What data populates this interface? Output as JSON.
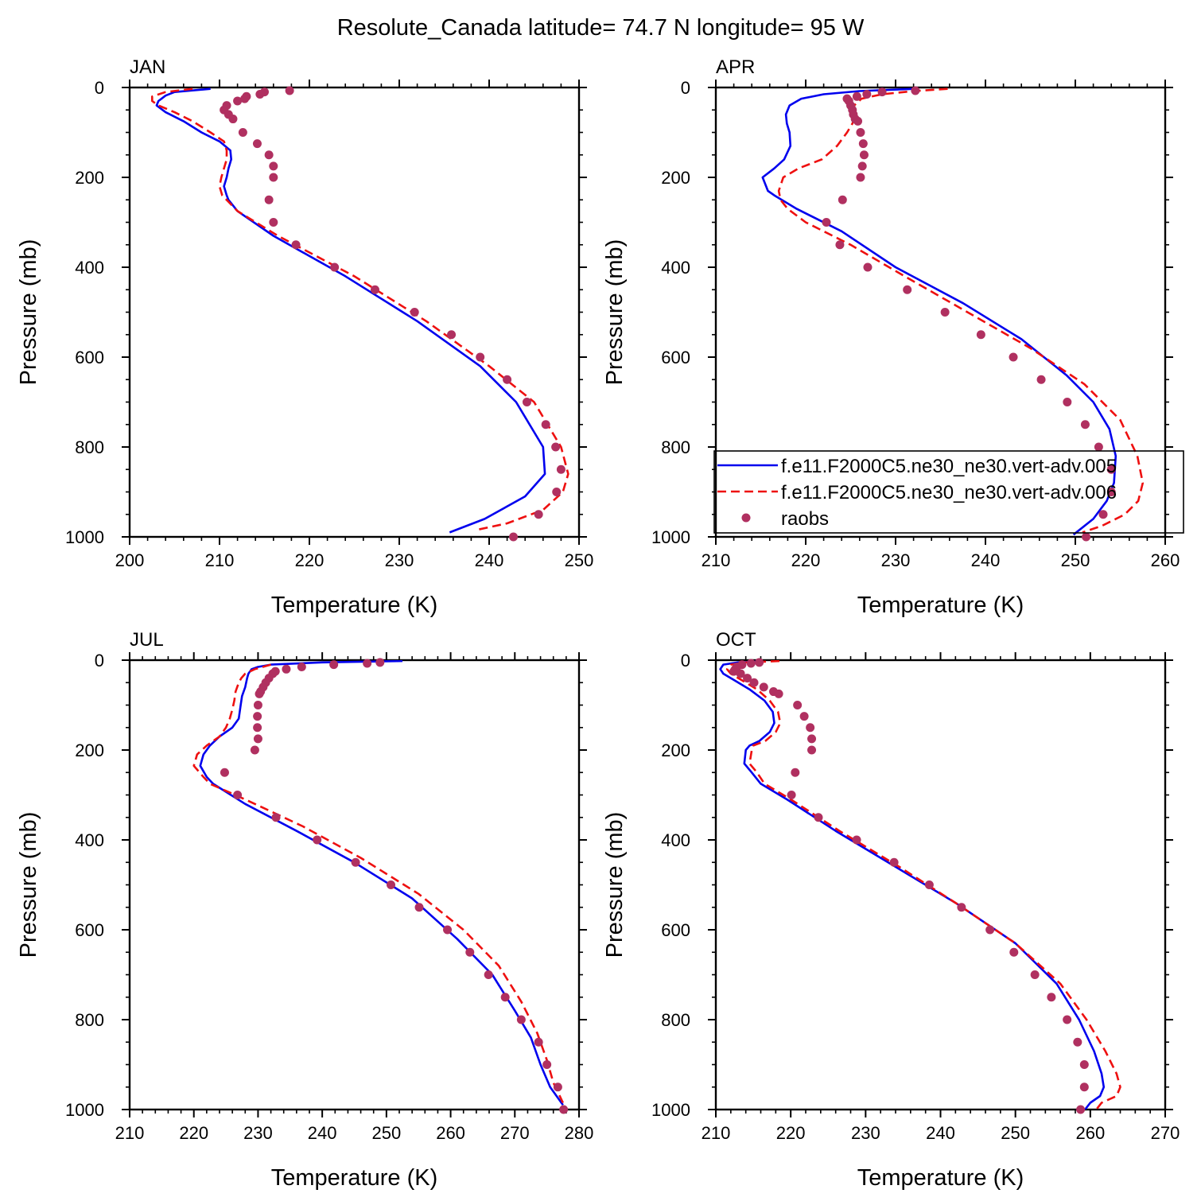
{
  "title": "Resolute_Canada  latitude= 74.7 N longitude= 95 W",
  "colors": {
    "model005": "#0000ee",
    "model006": "#ee1010",
    "raobs": "#b03060"
  },
  "legend": {
    "entries": [
      {
        "label": "f.e11.F2000C5.ne30_ne30.vert-adv.005",
        "style": "solid"
      },
      {
        "label": "f.e11.F2000C5.ne30_ne30.vert-adv.006",
        "style": "dashed"
      },
      {
        "label": "raobs",
        "style": "marker"
      }
    ]
  },
  "chart_data": [
    {
      "type": "line",
      "panel": "JAN",
      "xlabel": "Temperature (K)",
      "ylabel": "Pressure (mb)",
      "xlim": [
        200,
        250
      ],
      "ylim": [
        1000,
        0
      ],
      "xticks": [
        200,
        210,
        220,
        230,
        240,
        250
      ],
      "yticks": [
        0,
        200,
        400,
        600,
        800,
        1000
      ],
      "series": [
        {
          "name": "f.e11.F2000C5.ne30_ne30.vert-adv.005",
          "t": [
            209,
            205,
            204,
            203.2,
            203,
            204,
            206,
            208,
            210,
            211.2,
            211.3,
            211,
            210.8,
            210.5,
            210.8,
            211,
            212,
            216,
            224,
            232,
            239,
            243,
            246,
            246.2,
            244,
            239.5,
            235.6
          ],
          "p": [
            3,
            10,
            18,
            30,
            40,
            55,
            75,
            100,
            120,
            140,
            160,
            180,
            200,
            220,
            240,
            250,
            275,
            330,
            420,
            520,
            620,
            700,
            800,
            860,
            910,
            960,
            990
          ]
        },
        {
          "name": "f.e11.F2000C5.ne30_ne30.vert-adv.006",
          "t": [
            207,
            204,
            202.5,
            202.5,
            203.2,
            205,
            207,
            209,
            210.5,
            210.8,
            210.8,
            210.5,
            210.2,
            210,
            210.3,
            210.8,
            212,
            216.5,
            225,
            233,
            240,
            245,
            248,
            248.8,
            248.2,
            246,
            242,
            238.5
          ],
          "p": [
            3,
            10,
            20,
            30,
            40,
            55,
            75,
            100,
            120,
            140,
            160,
            180,
            200,
            220,
            240,
            250,
            275,
            330,
            420,
            520,
            620,
            700,
            800,
            860,
            900,
            940,
            970,
            985
          ]
        },
        {
          "name": "raobs",
          "t": [
            217.8,
            215,
            214.5,
            213,
            212.8,
            212,
            210.8,
            210.5,
            211,
            211.5,
            212.6,
            214.2,
            215.5,
            216,
            216,
            215.5,
            216,
            218.5,
            222.8,
            227.3,
            231.7,
            235.8,
            239,
            242,
            244.2,
            246.3,
            247.4,
            248,
            247.5,
            245.5,
            242.7
          ],
          "p": [
            7,
            10,
            15,
            20,
            25,
            30,
            40,
            50,
            60,
            70,
            100,
            125,
            150,
            175,
            200,
            250,
            300,
            350,
            400,
            450,
            500,
            550,
            600,
            650,
            700,
            750,
            800,
            850,
            900,
            950,
            1000
          ]
        }
      ]
    },
    {
      "type": "line",
      "panel": "APR",
      "xlabel": "Temperature (K)",
      "ylabel": "Pressure (mb)",
      "xlim": [
        210,
        260
      ],
      "ylim": [
        1000,
        0
      ],
      "xticks": [
        210,
        220,
        230,
        240,
        250,
        260
      ],
      "yticks": [
        0,
        200,
        400,
        600,
        800,
        1000
      ],
      "series": [
        {
          "name": "f.e11.F2000C5.ne30_ne30.vert-adv.005",
          "t": [
            232,
            226,
            222,
            219.5,
            218.2,
            217.8,
            217.9,
            218.2,
            218.3,
            217.6,
            216.5,
            215.2,
            215.8,
            216.5,
            219,
            224,
            230,
            237.5,
            244,
            249,
            252,
            253.8,
            254.5,
            254.3,
            253.5,
            252,
            249.8
          ],
          "p": [
            3,
            8,
            15,
            25,
            40,
            60,
            80,
            100,
            130,
            160,
            180,
            200,
            230,
            240,
            270,
            320,
            400,
            480,
            560,
            640,
            700,
            760,
            820,
            880,
            920,
            960,
            995
          ]
        },
        {
          "name": "f.e11.F2000C5.ne30_ne30.vert-adv.006",
          "t": [
            235.8,
            232,
            228.5,
            226.2,
            225.4,
            225.5,
            225.2,
            224.6,
            223.5,
            221.8,
            219.2,
            217.5,
            217,
            217.2,
            218,
            220,
            225,
            231,
            238,
            245,
            251,
            255,
            256.9,
            257.5,
            257,
            255.5,
            253,
            250.8
          ],
          "p": [
            3,
            8,
            15,
            25,
            40,
            60,
            80,
            100,
            130,
            160,
            180,
            200,
            230,
            250,
            270,
            300,
            350,
            420,
            500,
            580,
            660,
            740,
            820,
            880,
            920,
            950,
            975,
            990
          ]
        },
        {
          "name": "raobs",
          "t": [
            232.2,
            228.5,
            226.8,
            225.7,
            224.6,
            224.8,
            225,
            225.2,
            225.3,
            225.5,
            225.8,
            226.1,
            226.4,
            226.5,
            226.3,
            226.1,
            224.1,
            222.3,
            223.8,
            226.9,
            231.3,
            235.5,
            239.5,
            243.1,
            246.2,
            249.1,
            251.1,
            252.6,
            254,
            254,
            253.1,
            251.2
          ],
          "p": [
            7,
            10,
            15,
            20,
            25,
            30,
            40,
            50,
            60,
            70,
            75,
            100,
            125,
            150,
            175,
            200,
            250,
            300,
            350,
            400,
            450,
            500,
            550,
            600,
            650,
            700,
            750,
            800,
            850,
            900,
            950,
            1000
          ]
        }
      ]
    },
    {
      "type": "line",
      "panel": "JUL",
      "xlabel": "Temperature (K)",
      "ylabel": "Pressure (mb)",
      "xlim": [
        210,
        280
      ],
      "ylim": [
        1000,
        0
      ],
      "xticks": [
        210,
        220,
        230,
        240,
        250,
        260,
        270,
        280
      ],
      "yticks": [
        0,
        200,
        400,
        600,
        800,
        1000
      ],
      "series": [
        {
          "name": "f.e11.F2000C5.ne30_ne30.vert-adv.005",
          "t": [
            252.5,
            240,
            232,
            230,
            229,
            228.5,
            228.3,
            228,
            227.5,
            227.3,
            227,
            226,
            224,
            222.5,
            221.5,
            221,
            222,
            223,
            228,
            236,
            245,
            254,
            261,
            266.5,
            270,
            272.5,
            274,
            275.5,
            277.5
          ],
          "p": [
            2,
            5,
            10,
            15,
            20,
            30,
            40,
            60,
            80,
            100,
            130,
            150,
            170,
            190,
            210,
            235,
            260,
            275,
            320,
            380,
            450,
            530,
            620,
            700,
            780,
            840,
            900,
            950,
            990
          ]
        },
        {
          "name": "f.e11.F2000C5.ne30_ne30.vert-adv.006",
          "t": [
            232,
            229.5,
            228,
            227.4,
            227,
            226.5,
            226.3,
            226,
            225.6,
            225,
            224,
            222,
            220.5,
            220,
            221.5,
            222.5,
            228,
            237,
            246,
            255,
            262,
            267.5,
            271,
            273.5,
            275,
            276,
            277.5
          ],
          "p": [
            10,
            20,
            30,
            40,
            50,
            70,
            90,
            110,
            130,
            150,
            170,
            190,
            210,
            235,
            260,
            275,
            310,
            370,
            440,
            520,
            600,
            680,
            760,
            830,
            890,
            940,
            985
          ]
        },
        {
          "name": "raobs",
          "t": [
            249,
            247,
            241.8,
            236.8,
            234.4,
            232.7,
            232.3,
            231.7,
            231.2,
            230.8,
            230.4,
            230.2,
            230,
            229.9,
            229.9,
            230,
            229.5,
            224.8,
            226.8,
            232.8,
            239.2,
            245.2,
            250.7,
            255.1,
            259.5,
            263,
            265.9,
            268.5,
            271,
            273.7,
            275,
            276.7,
            277.6
          ],
          "p": [
            5,
            7,
            10,
            15,
            20,
            25,
            30,
            40,
            50,
            60,
            70,
            75,
            100,
            125,
            150,
            175,
            200,
            250,
            300,
            350,
            400,
            450,
            500,
            550,
            600,
            650,
            700,
            750,
            800,
            850,
            900,
            950,
            1000
          ]
        }
      ]
    },
    {
      "type": "line",
      "panel": "OCT",
      "xlabel": "Temperature (K)",
      "ylabel": "Pressure (mb)",
      "xlim": [
        210,
        270
      ],
      "ylim": [
        1000,
        0
      ],
      "xticks": [
        210,
        220,
        230,
        240,
        250,
        260,
        270
      ],
      "yticks": [
        0,
        200,
        400,
        600,
        800,
        1000
      ],
      "series": [
        {
          "name": "f.e11.F2000C5.ne30_ne30.vert-adv.005",
          "t": [
            216,
            213,
            211,
            210.6,
            211,
            212.5,
            214.5,
            216.5,
            217.6,
            217.8,
            217.2,
            215.8,
            214.5,
            214,
            213.8,
            214.8,
            216,
            219.5,
            226,
            234,
            242,
            250,
            255.5,
            258.5,
            260.5,
            261.5,
            261.8,
            261.3,
            260,
            259.3
          ],
          "p": [
            3,
            5,
            10,
            20,
            30,
            45,
            65,
            90,
            115,
            140,
            160,
            180,
            190,
            200,
            230,
            250,
            275,
            310,
            380,
            460,
            540,
            630,
            720,
            800,
            870,
            920,
            950,
            970,
            985,
            1000
          ]
        },
        {
          "name": "f.e11.F2000C5.ne30_ne30.vert-adv.006",
          "t": [
            218.5,
            214,
            212,
            211.5,
            212,
            213.5,
            215.5,
            217.2,
            218.3,
            218.6,
            218,
            216.6,
            215,
            214.8,
            214.5,
            215.5,
            216.5,
            220,
            226.5,
            234.5,
            242,
            250,
            256,
            259.5,
            262,
            263.5,
            264,
            263.5,
            261.5,
            260.8
          ],
          "p": [
            2,
            5,
            10,
            20,
            30,
            45,
            65,
            90,
            115,
            140,
            160,
            180,
            190,
            200,
            230,
            250,
            275,
            310,
            380,
            460,
            540,
            630,
            720,
            800,
            870,
            920,
            950,
            970,
            985,
            1000
          ]
        },
        {
          "name": "raobs",
          "t": [
            215.8,
            214.7,
            213.5,
            212.8,
            212.6,
            212.4,
            213.3,
            214.2,
            215.1,
            216.4,
            217.7,
            218.4,
            220.9,
            221.8,
            222.6,
            222.8,
            222.8,
            220.6,
            220.1,
            223.7,
            228.8,
            233.8,
            238.5,
            242.8,
            246.6,
            249.8,
            252.6,
            254.8,
            256.9,
            258.3,
            259.2,
            259.2,
            258.7
          ],
          "p": [
            5,
            7,
            10,
            15,
            20,
            25,
            30,
            40,
            50,
            60,
            70,
            75,
            100,
            125,
            150,
            175,
            200,
            250,
            300,
            350,
            400,
            450,
            500,
            550,
            600,
            650,
            700,
            750,
            800,
            850,
            900,
            950,
            1000
          ]
        }
      ]
    }
  ]
}
